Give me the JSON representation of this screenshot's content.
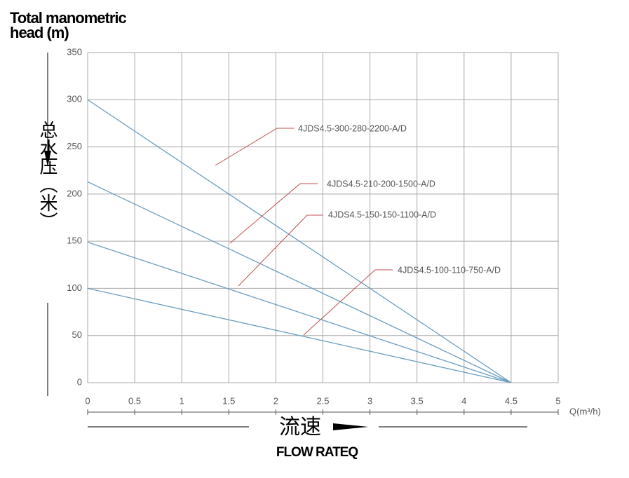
{
  "chart_data": {
    "type": "line",
    "ylabel": [
      "Total manometric",
      "head (m)"
    ],
    "ylabel_cn": "总水压（米）",
    "xlabel_cn": "流速",
    "xlabel": "FLOW RATEQ",
    "xunit": "Q(m³/h)",
    "x": [
      0,
      4.5
    ],
    "series": [
      {
        "name": "4JDS4.5-300-280-2200-A/D",
        "color": "#6a9ec0",
        "values": [
          300,
          0
        ]
      },
      {
        "name": "4JDS4.5-210-200-1500-A/D",
        "color": "#6a9ec0",
        "values": [
          213,
          0
        ]
      },
      {
        "name": "4JDS4.5-150-150-1100-A/D",
        "color": "#6a9ec0",
        "values": [
          149,
          0
        ]
      },
      {
        "name": "4JDS4.5-100-110-750-A/D",
        "color": "#6a9ec0",
        "values": [
          100,
          0
        ]
      }
    ],
    "leader_color": "#c0504d",
    "xlim": [
      0,
      5
    ],
    "xticks": [
      0,
      0.5,
      1,
      1.5,
      2,
      2.5,
      3,
      3.5,
      4,
      4.5,
      5
    ],
    "ylim": [
      0,
      350
    ],
    "yticks": [
      0,
      50,
      100,
      150,
      200,
      250,
      300,
      350
    ],
    "grid": true
  }
}
